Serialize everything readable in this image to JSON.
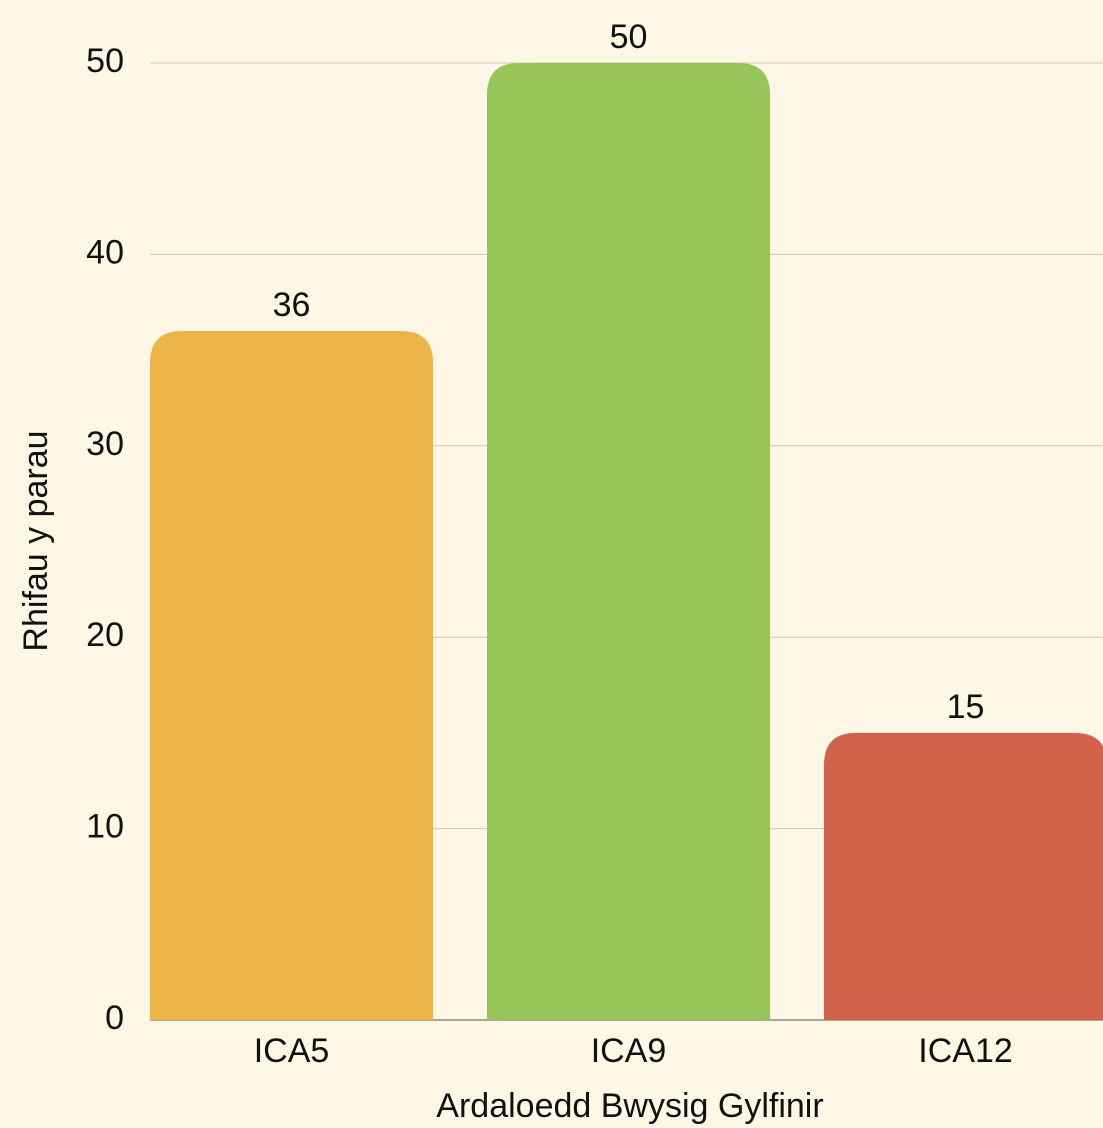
{
  "chart_data": {
    "type": "bar",
    "categories": [
      "ICA5",
      "ICA9",
      "ICA12"
    ],
    "values": [
      36,
      50,
      15
    ],
    "colors": [
      "#edb449",
      "#97c55a",
      "#d1634b"
    ],
    "xlabel": "Ardaloedd Bwysig Gylfinir",
    "ylabel": "Rhifau y parau",
    "ylim": [
      0,
      50
    ],
    "yticks": [
      0,
      10,
      20,
      30,
      40,
      50
    ],
    "grid": true
  }
}
